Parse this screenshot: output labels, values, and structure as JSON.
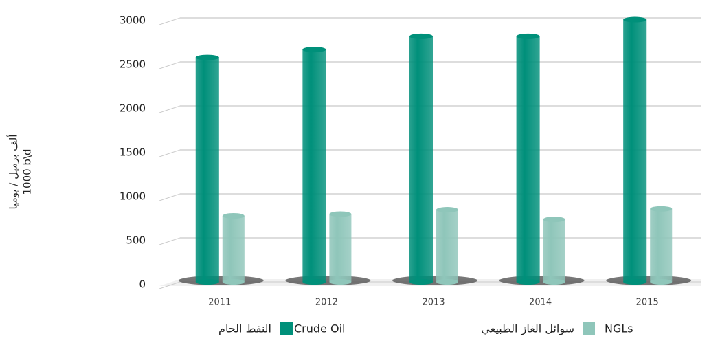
{
  "chart_data": {
    "type": "bar",
    "y_label": [
      "ألف برميل / يوميا",
      "1000 b\\d"
    ],
    "categories": [
      "2011",
      "2012",
      "2013",
      "2014",
      "2015"
    ],
    "series": [
      {
        "name": "Crude Oil",
        "name_ar": "النفط الخام",
        "color": "#00907a",
        "values": [
          2550,
          2640,
          2790,
          2790,
          2980
        ]
      },
      {
        "name": "NGLs",
        "name_ar": "سوائل الغاز الطبيعي",
        "color": "#8fc6ba",
        "values": [
          750,
          770,
          820,
          710,
          830
        ]
      }
    ],
    "ylim": [
      0,
      3000
    ],
    "yticks": [
      0,
      500,
      1000,
      1500,
      2000,
      2500,
      3000
    ],
    "grid": true
  }
}
